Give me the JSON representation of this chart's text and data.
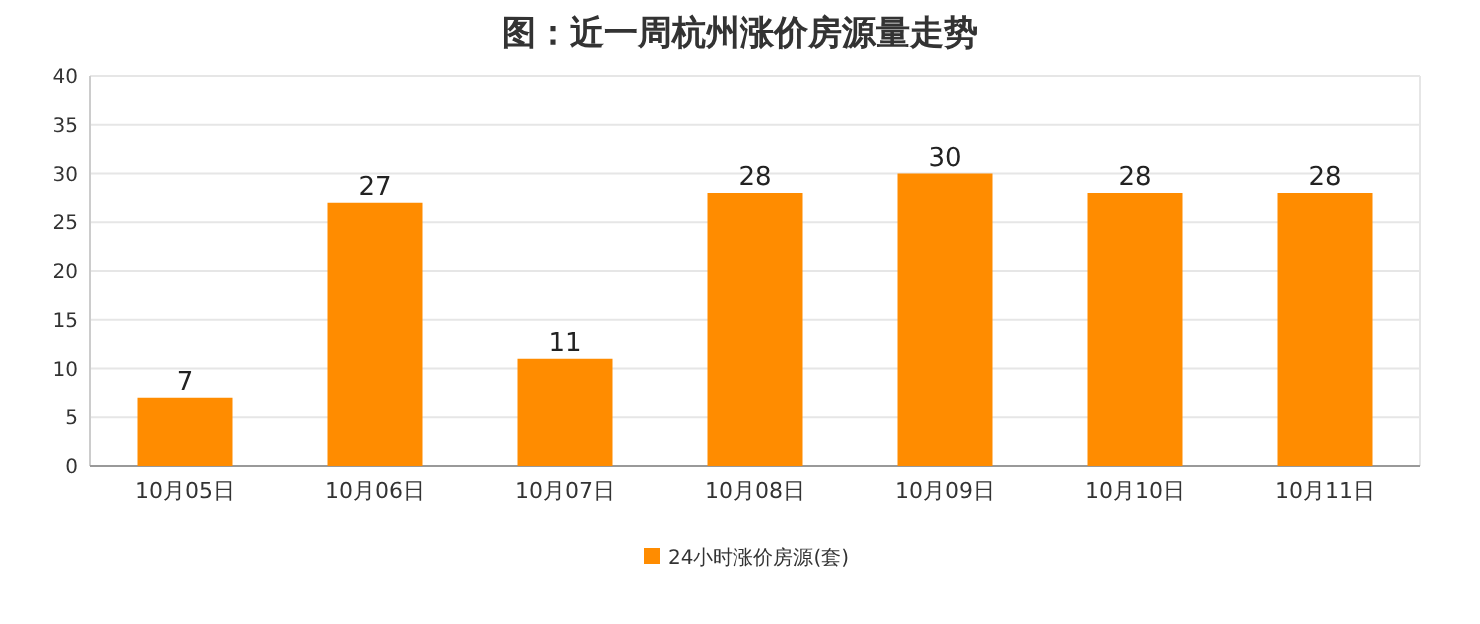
{
  "chart_data": {
    "type": "bar",
    "title": "图：近一周杭州涨价房源量走势",
    "categories": [
      "10月05日",
      "10月06日",
      "10月07日",
      "10月08日",
      "10月09日",
      "10月10日",
      "10月11日"
    ],
    "series": [
      {
        "name": "24小时涨价房源(套)",
        "color": "#ff8c00",
        "values": [
          7,
          27,
          11,
          28,
          30,
          28,
          28
        ]
      }
    ],
    "ylim": [
      0,
      40
    ],
    "yticks": [
      0,
      5,
      10,
      15,
      20,
      25,
      30,
      35,
      40
    ],
    "grid": "y",
    "data_labels": true,
    "legend": "bottom"
  }
}
